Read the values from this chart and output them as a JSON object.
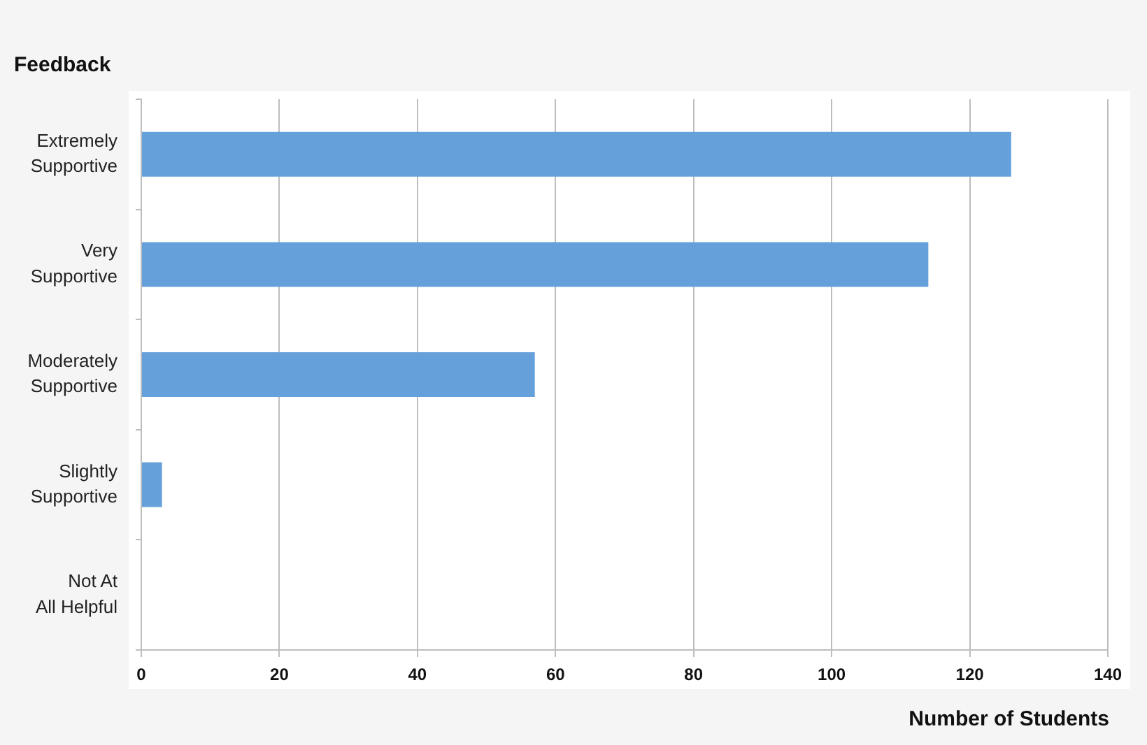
{
  "chart_data": {
    "type": "bar",
    "orientation": "horizontal",
    "categories": [
      "Extremely\nSupportive",
      "Very\nSupportive",
      "Moderately\nSupportive",
      "Slightly\nSupportive",
      "Not At\nAll Helpful"
    ],
    "values": [
      126,
      114,
      57,
      3,
      0
    ],
    "color": "#66a0db",
    "xlim": [
      0,
      140
    ],
    "xticks": [
      0,
      20,
      40,
      60,
      80,
      100,
      120,
      140
    ],
    "xlabel": "Number of Students",
    "ylabel": "Feedback",
    "grid": "x"
  }
}
